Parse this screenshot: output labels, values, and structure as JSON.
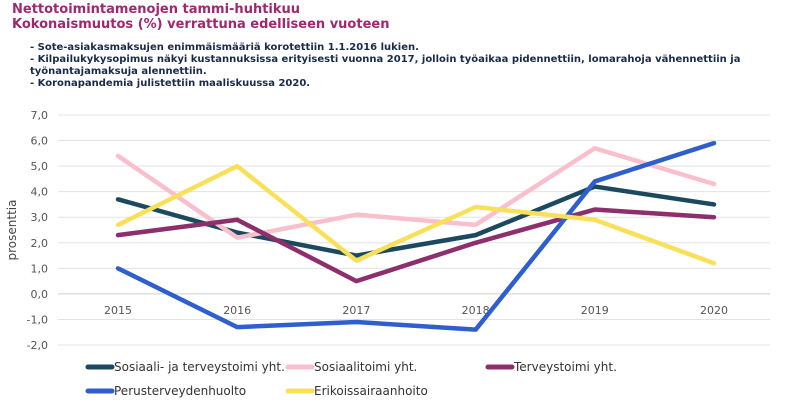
{
  "title": "Nettotoimintamenojen tammi-huhtikuu",
  "subtitle": "Kokonaismuutos (%) verrattuna edelliseen vuoteen",
  "notes": [
    "- Sote-asiakasmaksujen enimmäismääriä korotettiin 1.1.2016 lukien.",
    "- Kilpailukykysopimus näkyi kustannuksissa erityisesti vuonna 2017, jolloin työaikaa pidennettiin, lomarahoja   vähennettiin ja työnantajamaksuja alennettiin.",
    "- Koronapandemia julistettiin maaliskuussa 2020."
  ],
  "chart_data": {
    "type": "line",
    "ylabel": "prosenttia",
    "categories": [
      "2015",
      "2016",
      "2017",
      "2018",
      "2019",
      "2020"
    ],
    "ylim": [
      -2.0,
      7.0
    ],
    "yticks": [
      "-2,0",
      "-1,0",
      "0,0",
      "1,0",
      "2,0",
      "3,0",
      "4,0",
      "5,0",
      "6,0",
      "7,0"
    ],
    "grid": true,
    "legend_position": "bottom",
    "series": [
      {
        "name": "Sosiaali- ja terveystoimi yht.",
        "color": "#1b4a5e",
        "values": [
          3.7,
          2.4,
          1.5,
          2.3,
          4.2,
          3.5
        ]
      },
      {
        "name": "Sosiaalitoimi yht.",
        "color": "#f9bfcc",
        "values": [
          5.4,
          2.2,
          3.1,
          2.7,
          5.7,
          4.3
        ]
      },
      {
        "name": "Terveystoimi yht.",
        "color": "#8c2f6c",
        "values": [
          2.3,
          2.9,
          0.5,
          2.0,
          3.3,
          3.0
        ]
      },
      {
        "name": "Perusterveydenhuolto",
        "color": "#2f5fcc",
        "values": [
          1.0,
          -1.3,
          -1.1,
          -1.4,
          4.4,
          5.9
        ]
      },
      {
        "name": "Erikoissairaanhoito",
        "color": "#f9e05a",
        "values": [
          2.7,
          5.0,
          1.3,
          3.4,
          2.9,
          1.2
        ]
      }
    ]
  }
}
